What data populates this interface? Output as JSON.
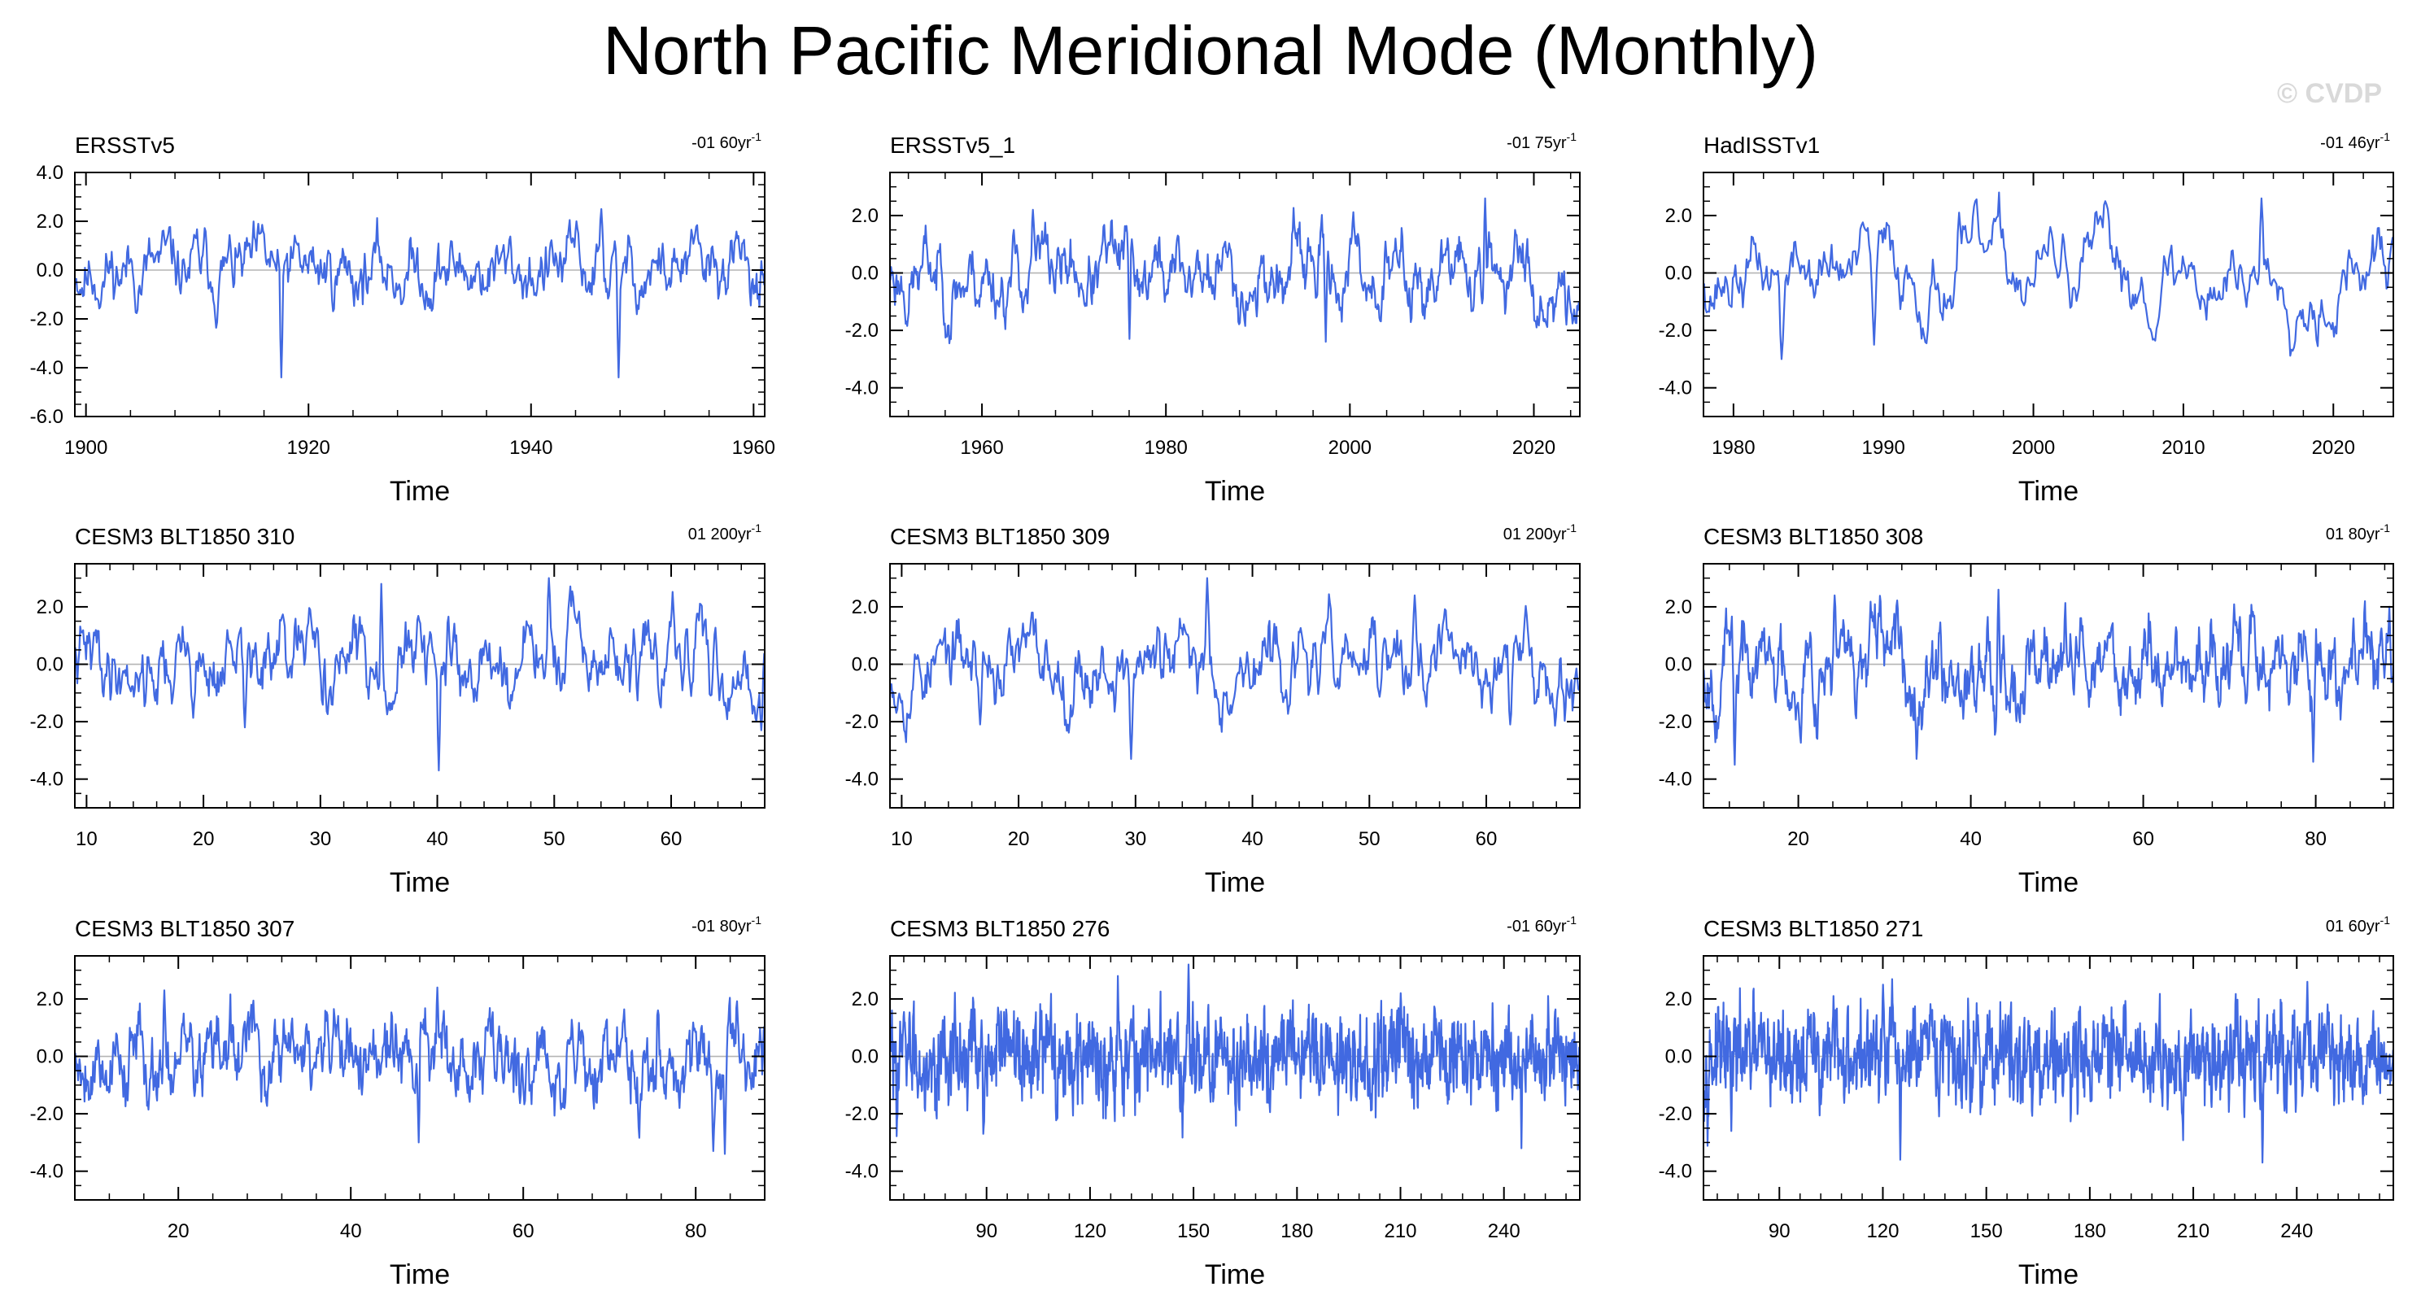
{
  "title": "North Pacific Meridional Mode (Monthly)",
  "watermark": "© CVDP",
  "colors": {
    "line": "#4169e1",
    "zero": "#b4b4b4",
    "axis": "#000000"
  },
  "chart_data": [
    {
      "type": "line",
      "name": "ERSSTv5",
      "trend_value": "-01 60yr",
      "trend_exp": "-1",
      "xlabel": "Time",
      "xlim": [
        1899,
        1961
      ],
      "ylim": [
        -6,
        4
      ],
      "xticks": [
        1900,
        1920,
        1940,
        1960
      ],
      "xtick_labels": [
        "1900",
        "1920",
        "1940",
        "1960"
      ],
      "yticks": [
        -6,
        -4,
        -2,
        0,
        2,
        4
      ],
      "ytick_labels": [
        "-6.0",
        "-4.0",
        "-2.0",
        "0.0",
        "2.0",
        "4.0"
      ],
      "n_points": 720,
      "seed": 11,
      "ar": 0.82,
      "amp": 0.9,
      "spikes": [
        [
          1917.5,
          -4.4
        ],
        [
          1947.8,
          -4.4
        ],
        [
          1946.3,
          2.5
        ],
        [
          1944,
          2.0
        ],
        [
          1958.6,
          1.4
        ]
      ]
    },
    {
      "type": "line",
      "name": "ERSSTv5_1",
      "trend_value": "-01 75yr",
      "trend_exp": "-1",
      "xlabel": "Time",
      "xlim": [
        1950,
        2025
      ],
      "ylim": [
        -5,
        3.5
      ],
      "xticks": [
        1960,
        1980,
        2000,
        2020
      ],
      "xtick_labels": [
        "1960",
        "1980",
        "2000",
        "2020"
      ],
      "yticks": [
        -4,
        -2,
        0,
        2
      ],
      "ytick_labels": [
        "-4.0",
        "-2.0",
        "0.0",
        "2.0"
      ],
      "n_points": 900,
      "seed": 23,
      "ar": 0.9,
      "amp": 1.0,
      "spikes": [
        [
          1965.5,
          2.2
        ],
        [
          2014.7,
          2.6
        ],
        [
          1976,
          -2.3
        ],
        [
          1997.3,
          -2.4
        ],
        [
          2023.5,
          -1.8
        ]
      ]
    },
    {
      "type": "line",
      "name": "HadISSTv1",
      "trend_value": "-01 46yr",
      "trend_exp": "-1",
      "xlabel": "Time",
      "xlim": [
        1978,
        2024
      ],
      "ylim": [
        -5,
        3.5
      ],
      "xticks": [
        1980,
        1990,
        2000,
        2010,
        2020
      ],
      "xtick_labels": [
        "1980",
        "1990",
        "2000",
        "2010",
        "2020"
      ],
      "yticks": [
        -4,
        -2,
        0,
        2
      ],
      "ytick_labels": [
        "-4.0",
        "-2.0",
        "0.0",
        "2.0"
      ],
      "n_points": 552,
      "seed": 37,
      "ar": 0.9,
      "amp": 1.0,
      "spikes": [
        [
          1983.2,
          -3.0
        ],
        [
          1989.3,
          -2.5
        ],
        [
          2015.2,
          2.6
        ],
        [
          1995,
          2.1
        ],
        [
          2008,
          -2.3
        ]
      ]
    },
    {
      "type": "line",
      "name": "CESM3 BLT1850 310",
      "trend_value": "01 200yr",
      "trend_exp": "-1",
      "xlabel": "Time",
      "xlim": [
        9,
        68
      ],
      "ylim": [
        -5,
        3.5
      ],
      "xticks": [
        10,
        20,
        30,
        40,
        50,
        60
      ],
      "xtick_labels": [
        "10",
        "20",
        "30",
        "40",
        "50",
        "60"
      ],
      "yticks": [
        -4,
        -2,
        0,
        2
      ],
      "ytick_labels": [
        "-4.0",
        "-2.0",
        "0.0",
        "2.0"
      ],
      "n_points": 708,
      "seed": 41,
      "ar": 0.85,
      "amp": 0.95,
      "spikes": [
        [
          40.1,
          -3.7
        ],
        [
          35.2,
          2.8
        ],
        [
          49.5,
          3.0
        ],
        [
          67.7,
          -2.3
        ],
        [
          23.5,
          -2.2
        ]
      ]
    },
    {
      "type": "line",
      "name": "CESM3 BLT1850 309",
      "trend_value": "01 200yr",
      "trend_exp": "-1",
      "xlabel": "Time",
      "xlim": [
        9,
        68
      ],
      "ylim": [
        -5,
        3.5
      ],
      "xticks": [
        10,
        20,
        30,
        40,
        50,
        60
      ],
      "xtick_labels": [
        "10",
        "20",
        "30",
        "40",
        "50",
        "60"
      ],
      "yticks": [
        -4,
        -2,
        0,
        2
      ],
      "ytick_labels": [
        "-4.0",
        "-2.0",
        "0.0",
        "2.0"
      ],
      "n_points": 708,
      "seed": 53,
      "ar": 0.85,
      "amp": 0.9,
      "spikes": [
        [
          29.6,
          -3.3
        ],
        [
          36.1,
          3.0
        ],
        [
          53.8,
          2.4
        ],
        [
          62,
          -2.1
        ],
        [
          16.7,
          -2.1
        ]
      ]
    },
    {
      "type": "line",
      "name": "CESM3 BLT1850 308",
      "trend_value": "01 80yr",
      "trend_exp": "-1",
      "xlabel": "Time",
      "xlim": [
        9,
        89
      ],
      "ylim": [
        -5,
        3.5
      ],
      "xticks": [
        20,
        40,
        60,
        80
      ],
      "xtick_labels": [
        "20",
        "40",
        "60",
        "80"
      ],
      "yticks": [
        -4,
        -2,
        0,
        2
      ],
      "ytick_labels": [
        "-4.0",
        "-2.0",
        "0.0",
        "2.0"
      ],
      "n_points": 960,
      "seed": 67,
      "ar": 0.8,
      "amp": 0.95,
      "spikes": [
        [
          12.6,
          -3.5
        ],
        [
          79.7,
          -3.4
        ],
        [
          43.2,
          2.6
        ],
        [
          88.5,
          2.0
        ],
        [
          24.2,
          2.4
        ]
      ]
    },
    {
      "type": "line",
      "name": "CESM3 BLT1850 307",
      "trend_value": "-01 80yr",
      "trend_exp": "-1",
      "xlabel": "Time",
      "xlim": [
        8,
        88
      ],
      "ylim": [
        -5,
        3.5
      ],
      "xticks": [
        20,
        40,
        60,
        80
      ],
      "xtick_labels": [
        "20",
        "40",
        "60",
        "80"
      ],
      "yticks": [
        -4,
        -2,
        0,
        2
      ],
      "ytick_labels": [
        "-4.0",
        "-2.0",
        "0.0",
        "2.0"
      ],
      "n_points": 960,
      "seed": 79,
      "ar": 0.8,
      "amp": 0.95,
      "spikes": [
        [
          50.0,
          2.4
        ],
        [
          47.8,
          -3.0
        ],
        [
          83.3,
          -3.4
        ],
        [
          18.3,
          2.3
        ],
        [
          82,
          -3.3
        ]
      ]
    },
    {
      "type": "line",
      "name": "CESM3 BLT1850 276",
      "trend_value": "-01 60yr",
      "trend_exp": "-1",
      "xlabel": "Time",
      "xlim": [
        62,
        262
      ],
      "ylim": [
        -5,
        3.5
      ],
      "xticks": [
        90,
        120,
        150,
        180,
        210,
        240
      ],
      "xtick_labels": [
        "90",
        "120",
        "150",
        "180",
        "210",
        "240"
      ],
      "yticks": [
        -4,
        -2,
        0,
        2
      ],
      "ytick_labels": [
        "-4.0",
        "-2.0",
        "0.0",
        "2.0"
      ],
      "n_points": 1600,
      "seed": 83,
      "ar": 0.55,
      "amp": 0.95,
      "spikes": [
        [
          148.5,
          3.2
        ],
        [
          245,
          -3.2
        ],
        [
          89,
          -2.7
        ],
        [
          210,
          2.2
        ],
        [
          128,
          2.8
        ]
      ]
    },
    {
      "type": "line",
      "name": "CESM3 BLT1850 271",
      "trend_value": "01 60yr",
      "trend_exp": "-1",
      "xlabel": "Time",
      "xlim": [
        68,
        268
      ],
      "ylim": [
        -5,
        3.5
      ],
      "xticks": [
        90,
        120,
        150,
        180,
        210,
        240
      ],
      "xtick_labels": [
        "90",
        "120",
        "150",
        "180",
        "210",
        "240"
      ],
      "yticks": [
        -4,
        -2,
        0,
        2
      ],
      "ytick_labels": [
        "-4.0",
        "-2.0",
        "0.0",
        "2.0"
      ],
      "n_points": 1600,
      "seed": 97,
      "ar": 0.55,
      "amp": 0.95,
      "spikes": [
        [
          230,
          -3.7
        ],
        [
          243,
          2.6
        ],
        [
          125,
          -3.6
        ],
        [
          120,
          2.5
        ],
        [
          76,
          -2.6
        ]
      ]
    }
  ]
}
